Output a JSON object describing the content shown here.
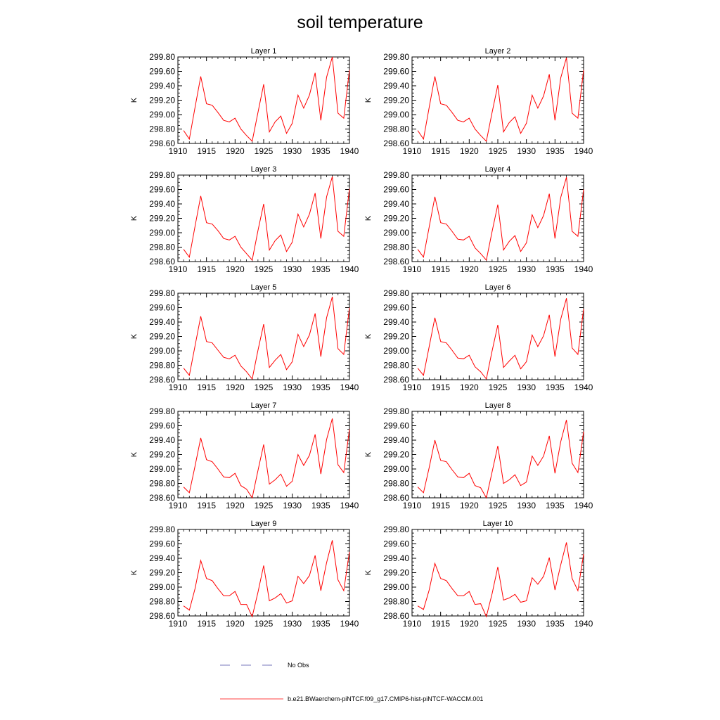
{
  "title": "soil temperature",
  "chart_data": {
    "type": "line",
    "ylabel": "K",
    "xlim": [
      1910,
      1940
    ],
    "ylim": [
      298.6,
      299.8
    ],
    "x_ticks": [
      "1910",
      "1915",
      "1920",
      "1925",
      "1930",
      "1935",
      "1940"
    ],
    "y_ticks": [
      "298.60",
      "298.80",
      "299.00",
      "299.20",
      "299.40",
      "299.60",
      "299.80"
    ],
    "x": [
      1911,
      1912,
      1913,
      1914,
      1915,
      1916,
      1917,
      1918,
      1919,
      1920,
      1921,
      1922,
      1923,
      1924,
      1925,
      1926,
      1927,
      1928,
      1929,
      1930,
      1931,
      1932,
      1933,
      1934,
      1935,
      1936,
      1937,
      1938,
      1939,
      1940
    ],
    "panels": [
      {
        "title": "Layer 1",
        "series": [
          {
            "color": "#ff0000",
            "values": [
              298.78,
              298.66,
              299.1,
              299.53,
              299.15,
              299.13,
              299.03,
              298.92,
              298.9,
              298.95,
              298.8,
              298.71,
              298.63,
              299.03,
              299.42,
              298.76,
              298.9,
              298.98,
              298.74,
              298.88,
              299.27,
              299.09,
              299.27,
              299.58,
              298.92,
              299.52,
              299.8,
              299.02,
              298.95,
              299.62
            ]
          }
        ]
      },
      {
        "title": "Layer 2",
        "series": [
          {
            "color": "#ff0000",
            "values": [
              298.78,
              298.66,
              299.1,
              299.53,
              299.15,
              299.13,
              299.03,
              298.92,
              298.9,
              298.95,
              298.8,
              298.71,
              298.63,
              299.03,
              299.41,
              298.76,
              298.89,
              298.97,
              298.74,
              298.88,
              299.27,
              299.09,
              299.26,
              299.56,
              298.92,
              299.51,
              299.79,
              299.02,
              298.95,
              299.62
            ]
          }
        ]
      },
      {
        "title": "Layer 3",
        "series": [
          {
            "color": "#ff0000",
            "values": [
              298.77,
              298.66,
              299.09,
              299.51,
              299.14,
              299.12,
              299.03,
              298.92,
              298.9,
              298.95,
              298.8,
              298.71,
              298.62,
              299.03,
              299.4,
              298.76,
              298.89,
              298.97,
              298.74,
              298.87,
              299.26,
              299.08,
              299.26,
              299.55,
              298.92,
              299.5,
              299.78,
              299.02,
              298.95,
              299.61
            ]
          }
        ]
      },
      {
        "title": "Layer 4",
        "series": [
          {
            "color": "#ff0000",
            "values": [
              298.77,
              298.66,
              299.08,
              299.5,
              299.14,
              299.12,
              299.02,
              298.91,
              298.9,
              298.95,
              298.79,
              298.71,
              298.62,
              299.02,
              299.39,
              298.76,
              298.88,
              298.96,
              298.74,
              298.86,
              299.25,
              299.07,
              299.24,
              299.54,
              298.92,
              299.49,
              299.77,
              299.02,
              298.95,
              299.6
            ]
          }
        ]
      },
      {
        "title": "Layer 5",
        "series": [
          {
            "color": "#ff0000",
            "values": [
              298.76,
              298.66,
              299.07,
              299.48,
              299.13,
              299.11,
              299.01,
              298.91,
              298.89,
              298.94,
              298.79,
              298.71,
              298.61,
              299.01,
              299.37,
              298.77,
              298.87,
              298.95,
              298.74,
              298.85,
              299.23,
              299.06,
              299.22,
              299.52,
              298.92,
              299.46,
              299.75,
              299.03,
              298.95,
              299.6
            ]
          }
        ]
      },
      {
        "title": "Layer 6",
        "series": [
          {
            "color": "#ff0000",
            "values": [
              298.76,
              298.66,
              299.06,
              299.46,
              299.13,
              299.11,
              299.01,
              298.9,
              298.89,
              298.94,
              298.78,
              298.71,
              298.61,
              299.0,
              299.36,
              298.77,
              298.86,
              298.94,
              298.75,
              298.85,
              299.22,
              299.06,
              299.21,
              299.5,
              298.92,
              299.44,
              299.73,
              299.04,
              298.95,
              299.58
            ]
          }
        ]
      },
      {
        "title": "Layer 7",
        "series": [
          {
            "color": "#ff0000",
            "values": [
              298.75,
              298.67,
              299.04,
              299.43,
              299.13,
              299.1,
              299.0,
              298.89,
              298.88,
              298.94,
              298.77,
              298.72,
              298.6,
              298.98,
              299.34,
              298.79,
              298.85,
              298.93,
              298.76,
              298.83,
              299.2,
              299.05,
              299.19,
              299.48,
              298.93,
              299.41,
              299.7,
              299.06,
              298.95,
              299.55
            ]
          }
        ]
      },
      {
        "title": "Layer 8",
        "series": [
          {
            "color": "#ff0000",
            "values": [
              298.75,
              298.67,
              299.02,
              299.4,
              299.12,
              299.1,
              298.99,
              298.89,
              298.88,
              298.94,
              298.77,
              298.74,
              298.6,
              298.96,
              299.32,
              298.8,
              298.85,
              298.92,
              298.77,
              298.82,
              299.18,
              299.05,
              299.18,
              299.46,
              298.94,
              299.38,
              299.68,
              299.08,
              298.95,
              299.52
            ]
          }
        ]
      },
      {
        "title": "Layer 9",
        "series": [
          {
            "color": "#ff0000",
            "values": [
              298.74,
              298.68,
              298.98,
              299.37,
              299.12,
              299.09,
              298.98,
              298.88,
              298.88,
              298.94,
              298.76,
              298.76,
              298.59,
              298.93,
              299.3,
              298.81,
              298.85,
              298.91,
              298.78,
              298.81,
              299.15,
              299.05,
              299.16,
              299.44,
              298.95,
              299.34,
              299.65,
              299.1,
              298.95,
              299.49
            ]
          }
        ]
      },
      {
        "title": "Layer 10",
        "series": [
          {
            "color": "#ff0000",
            "values": [
              298.74,
              298.69,
              298.96,
              299.33,
              299.12,
              299.09,
              298.98,
              298.88,
              298.88,
              298.94,
              298.76,
              298.77,
              298.59,
              298.91,
              299.28,
              298.82,
              298.85,
              298.9,
              298.79,
              298.81,
              299.13,
              299.04,
              299.15,
              299.41,
              298.96,
              299.31,
              299.62,
              299.12,
              298.95,
              299.46
            ]
          }
        ]
      }
    ],
    "legend": [
      {
        "label": "No Obs",
        "color": "#4f4fa8",
        "dash": "dashed"
      },
      {
        "label": "b.e21.BWaerchem-piNTCF.f09_g17.CMIP6-hist-piNTCF-WACCM.001",
        "color": "#ff0000",
        "dash": "solid"
      }
    ],
    "legend_position": "bottom-center"
  }
}
